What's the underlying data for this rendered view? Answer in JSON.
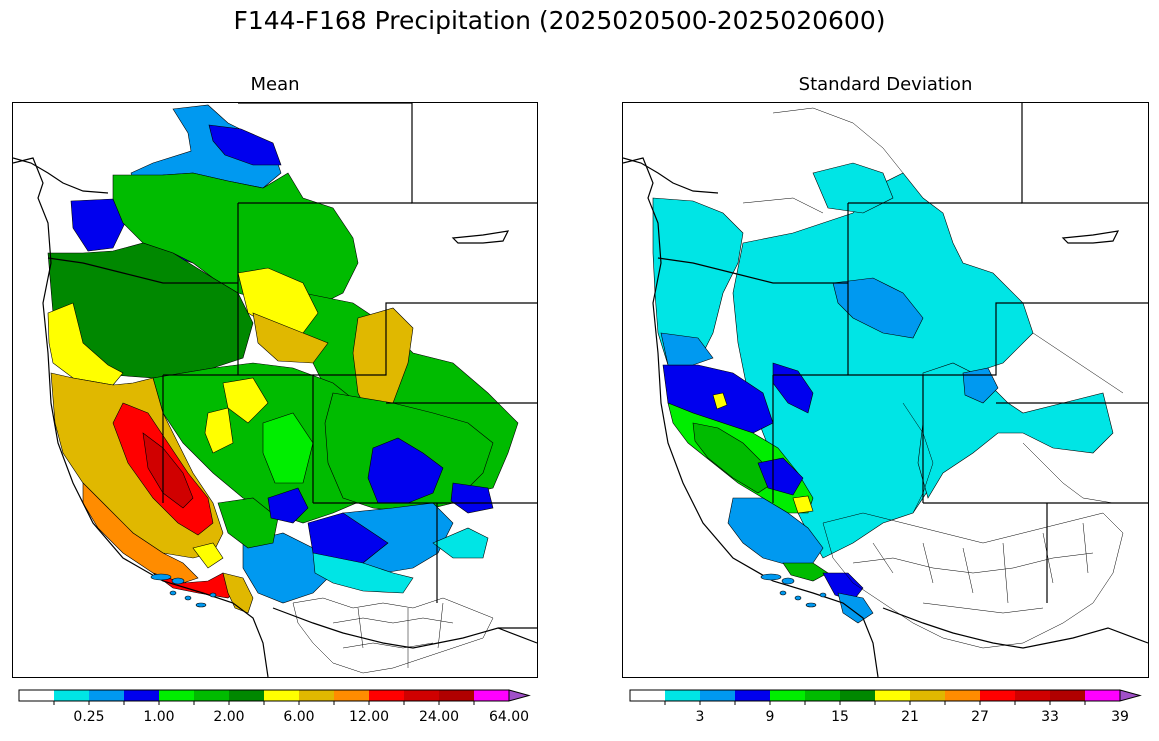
{
  "figure": {
    "title": "F144-F168 Precipitation (2025020500-2025020600)"
  },
  "panels": [
    {
      "id": "mean",
      "title": "Mean",
      "colorbar": {
        "colors": [
          "#ffffff",
          "#00e5e5",
          "#0099f0",
          "#0000ee",
          "#00ee00",
          "#00bb00",
          "#008800",
          "#ffff00",
          "#e0b800",
          "#ff8c00",
          "#ff0000",
          "#d00000",
          "#b00000",
          "#ff00ff",
          "#a050c8"
        ],
        "tick_labels": [
          "0.25",
          "1.00",
          "2.00",
          "6.00",
          "12.00",
          "24.00",
          "64.00"
        ],
        "tick_label_bins": [
          1,
          3,
          5,
          7,
          9,
          11,
          13
        ],
        "extend": "max"
      }
    },
    {
      "id": "sd",
      "title": "Standard Deviation",
      "colorbar": {
        "colors": [
          "#ffffff",
          "#00e5e5",
          "#0099f0",
          "#0000ee",
          "#00ee00",
          "#00bb00",
          "#008800",
          "#ffff00",
          "#e0b800",
          "#ff8c00",
          "#ff0000",
          "#d00000",
          "#b00000",
          "#ff00ff",
          "#a050c8"
        ],
        "tick_labels": [
          "3",
          "9",
          "15",
          "21",
          "27",
          "33",
          "39"
        ],
        "tick_label_bins": [
          1,
          3,
          5,
          7,
          9,
          11,
          13
        ],
        "extend": "max"
      }
    }
  ],
  "map_regions": {
    "mean": [
      {
        "name": "northern-rockies-north",
        "color": "#0000ee"
      },
      {
        "name": "northern-rockies",
        "color": "#0099f0"
      },
      {
        "name": "puget-sound",
        "color": "#0000ee"
      },
      {
        "name": "columbia-basin",
        "color": "#008800"
      },
      {
        "name": "upper-columbia",
        "color": "#00bb00"
      },
      {
        "name": "idaho-highlands",
        "color": "#ffff00"
      },
      {
        "name": "snake-river",
        "color": "#e0b800"
      },
      {
        "name": "oregon-coast",
        "color": "#ffff00"
      },
      {
        "name": "upper-missouri",
        "color": "#00bb00"
      },
      {
        "name": "wyoming-basins",
        "color": "#e0b800"
      },
      {
        "name": "great-basin",
        "color": "#00bb00"
      },
      {
        "name": "colorado-basin",
        "color": "#00bb00"
      },
      {
        "name": "upper-colorado",
        "color": "#0000ee"
      },
      {
        "name": "northern-california",
        "color": "#e0b800"
      },
      {
        "name": "sierra-nevada",
        "color": "#ff0000"
      },
      {
        "name": "southern-sierra",
        "color": "#d00000"
      },
      {
        "name": "central-coast",
        "color": "#ff8c00"
      },
      {
        "name": "southern-california",
        "color": "#ff0000"
      },
      {
        "name": "mojave",
        "color": "#0099f0"
      },
      {
        "name": "arizona-north",
        "color": "#0000ee"
      },
      {
        "name": "arizona-central",
        "color": "#00e5e5"
      }
    ],
    "sd": [
      {
        "name": "northwest",
        "color": "#00e5e5"
      },
      {
        "name": "north-coast",
        "color": "#0000ee"
      },
      {
        "name": "sierra",
        "color": "#00ee00"
      },
      {
        "name": "southern-california",
        "color": "#0099f0"
      },
      {
        "name": "interior",
        "color": "#00e5e5"
      }
    ]
  }
}
